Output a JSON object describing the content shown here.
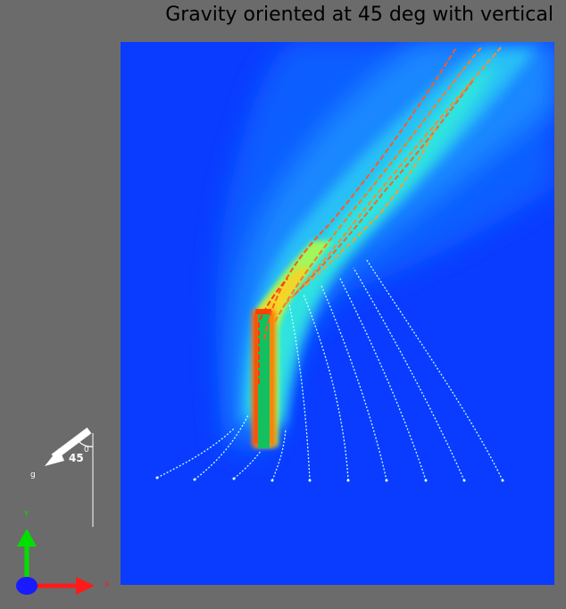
{
  "title": "Gravity oriented at 45 deg with vertical",
  "gravity_indicator": {
    "angle_label": "45",
    "degree_mark": "0",
    "vector_label": "g"
  },
  "axes_triad": {
    "y_label": "Y",
    "x_label": "X"
  },
  "colors": {
    "background": "#6b6b6b",
    "field_low": "#0a3cff",
    "field_high": "#ff2000",
    "obstacle": "#12c060",
    "streamline": "#c8ffff"
  }
}
